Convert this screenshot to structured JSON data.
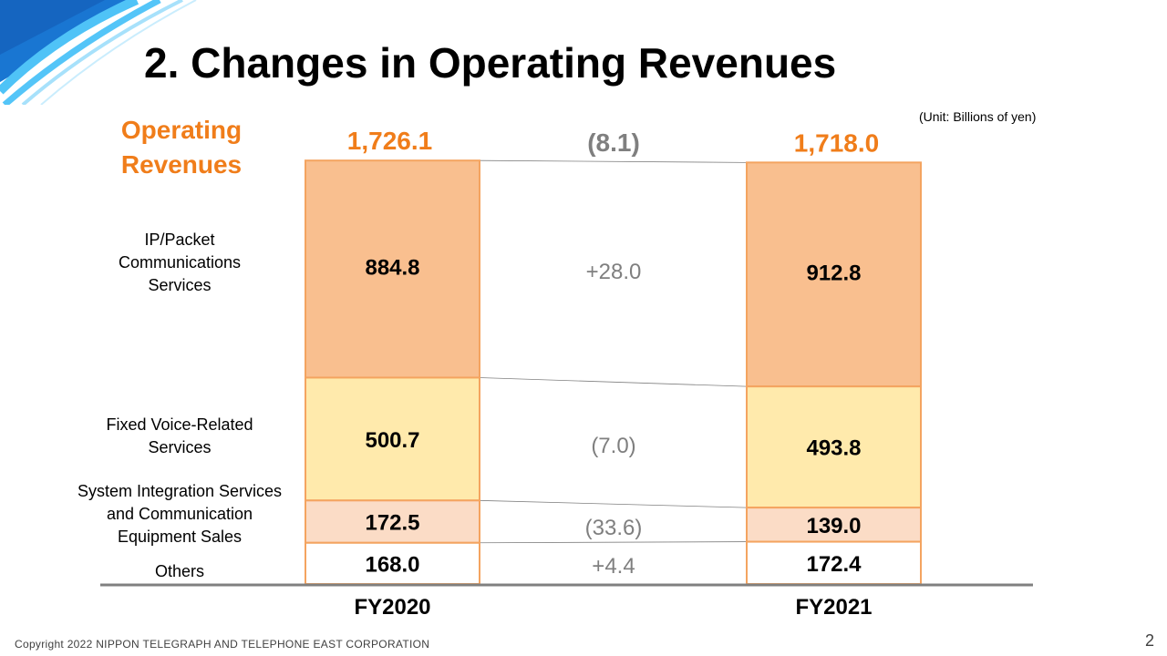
{
  "header": {
    "title": "2. Changes in Operating Revenues",
    "unit_note": "(Unit:  Billions of yen)"
  },
  "chart_data": {
    "type": "bar",
    "stacked": true,
    "title": "Operating Revenues",
    "categories": [
      "FY2020",
      "FY2021"
    ],
    "totals": [
      "1,726.1",
      "1,718.0"
    ],
    "total_change": "(8.1)",
    "series": [
      {
        "name": "IP/Packet Communications Services",
        "label_lines": [
          "IP/Packet",
          "Communications",
          "Services"
        ],
        "values": [
          884.8,
          912.8
        ],
        "labels": [
          "884.8",
          "912.8"
        ],
        "change": "+28.0",
        "color": "#f9bf8f"
      },
      {
        "name": "Fixed Voice-Related Services",
        "label_lines": [
          "Fixed Voice-Related",
          "Services"
        ],
        "values": [
          500.7,
          493.8
        ],
        "labels": [
          "500.7",
          "493.8"
        ],
        "change": "(7.0)",
        "color": "#ffeaac"
      },
      {
        "name": "System Integration Services and Communication Equipment Sales",
        "label_lines": [
          "System Integration Services",
          "and Communication",
          "Equipment  Sales"
        ],
        "values": [
          172.5,
          139.0
        ],
        "labels": [
          "172.5",
          "139.0"
        ],
        "change": "(33.6)",
        "color": "#fbdcc6"
      },
      {
        "name": "Others",
        "label_lines": [
          "Others"
        ],
        "values": [
          168.0,
          172.4
        ],
        "labels": [
          "168.0",
          "172.4"
        ],
        "change": "+4.4",
        "color": "#ffffff"
      }
    ],
    "colors": {
      "accent": "#f07d1a",
      "bar_border": "#f4a460",
      "change_text": "#7f7f7f"
    },
    "legend": "left"
  },
  "footer": {
    "copyright": "Copyright 2022 NIPPON TELEGRAPH AND TELEPHONE EAST CORPORATION",
    "page_number": "2"
  }
}
